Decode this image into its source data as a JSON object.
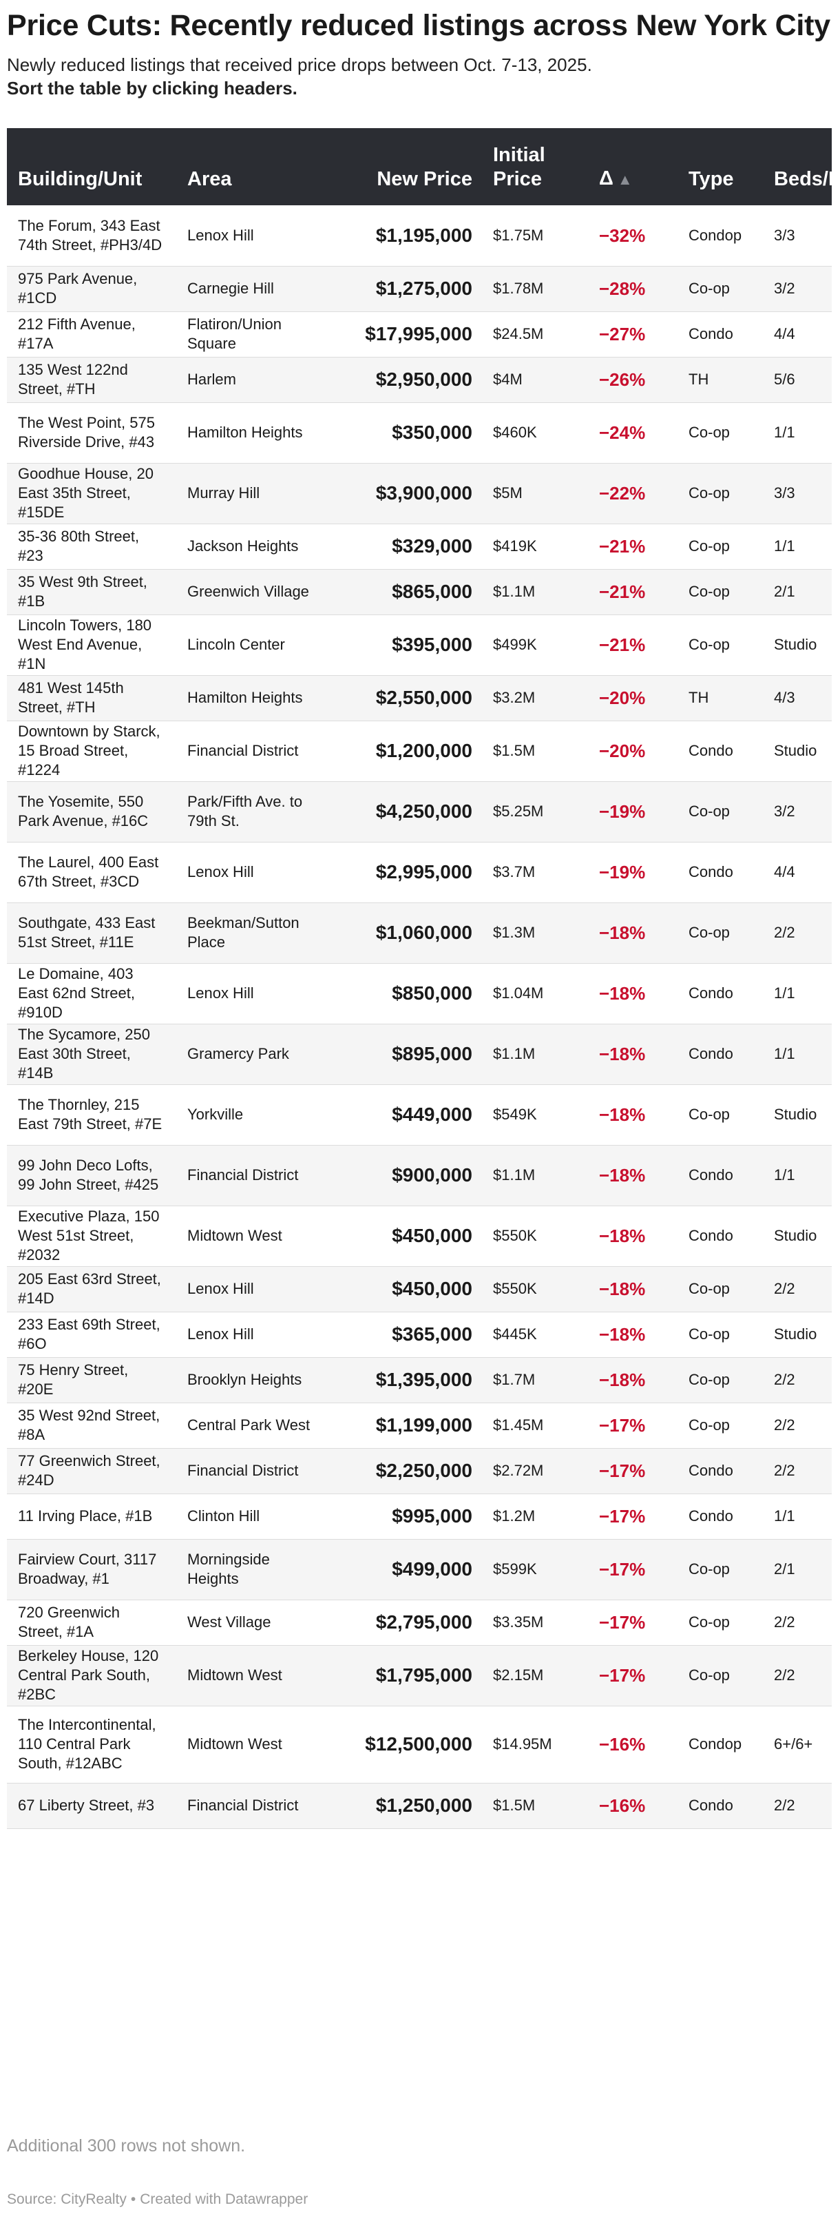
{
  "title": "Price Cuts: Recently reduced listings across New York City",
  "subtitle": "Newly reduced listings that received price drops between Oct. 7-13, 2025.",
  "instruction": "Sort the table by clicking headers.",
  "colors": {
    "header_bg": "#2b2d33",
    "delta_red": "#c8102e",
    "stripe": "#f5f5f5"
  },
  "table": {
    "headers": {
      "building": "Building/Unit",
      "area": "Area",
      "new_price": "New Price",
      "initial_price": "Initial Price",
      "delta": "Δ",
      "delta_sort_icon": "▲",
      "type": "Type",
      "beds_baths": "Beds/Baths"
    },
    "rows": [
      {
        "building": "The Forum, 343 East 74th Street, #PH3/4D",
        "area": "Lenox Hill",
        "new_price": "$1,195,000",
        "initial_price": "$1.75M",
        "delta": "−32%",
        "type": "Condop",
        "beds_baths": "3/3"
      },
      {
        "building": "975 Park Avenue, #1CD",
        "area": "Carnegie Hill",
        "new_price": "$1,275,000",
        "initial_price": "$1.78M",
        "delta": "−28%",
        "type": "Co-op",
        "beds_baths": "3/2"
      },
      {
        "building": "212 Fifth Avenue, #17A",
        "area": "Flatiron/Union Square",
        "new_price": "$17,995,000",
        "initial_price": "$24.5M",
        "delta": "−27%",
        "type": "Condo",
        "beds_baths": "4/4"
      },
      {
        "building": "135 West 122nd Street, #TH",
        "area": "Harlem",
        "new_price": "$2,950,000",
        "initial_price": "$4M",
        "delta": "−26%",
        "type": "TH",
        "beds_baths": "5/6"
      },
      {
        "building": "The West Point, 575 Riverside Drive, #43",
        "area": "Hamilton Heights",
        "new_price": "$350,000",
        "initial_price": "$460K",
        "delta": "−24%",
        "type": "Co-op",
        "beds_baths": "1/1"
      },
      {
        "building": "Goodhue House, 20 East 35th Street, #15DE",
        "area": "Murray Hill",
        "new_price": "$3,900,000",
        "initial_price": "$5M",
        "delta": "−22%",
        "type": "Co-op",
        "beds_baths": "3/3"
      },
      {
        "building": "35-36 80th Street, #23",
        "area": "Jackson Heights",
        "new_price": "$329,000",
        "initial_price": "$419K",
        "delta": "−21%",
        "type": "Co-op",
        "beds_baths": "1/1"
      },
      {
        "building": "35 West 9th Street, #1B",
        "area": "Greenwich Village",
        "new_price": "$865,000",
        "initial_price": "$1.1M",
        "delta": "−21%",
        "type": "Co-op",
        "beds_baths": "2/1"
      },
      {
        "building": "Lincoln Towers, 180 West End Avenue, #1N",
        "area": "Lincoln Center",
        "new_price": "$395,000",
        "initial_price": "$499K",
        "delta": "−21%",
        "type": "Co-op",
        "beds_baths": "Studio"
      },
      {
        "building": "481 West 145th Street, #TH",
        "area": "Hamilton Heights",
        "new_price": "$2,550,000",
        "initial_price": "$3.2M",
        "delta": "−20%",
        "type": "TH",
        "beds_baths": "4/3"
      },
      {
        "building": "Downtown by Starck, 15 Broad Street, #1224",
        "area": "Financial District",
        "new_price": "$1,200,000",
        "initial_price": "$1.5M",
        "delta": "−20%",
        "type": "Condo",
        "beds_baths": "Studio"
      },
      {
        "building": "The Yosemite, 550 Park Avenue, #16C",
        "area": "Park/Fifth Ave. to 79th St.",
        "new_price": "$4,250,000",
        "initial_price": "$5.25M",
        "delta": "−19%",
        "type": "Co-op",
        "beds_baths": "3/2"
      },
      {
        "building": "The Laurel, 400 East 67th Street, #3CD",
        "area": "Lenox Hill",
        "new_price": "$2,995,000",
        "initial_price": "$3.7M",
        "delta": "−19%",
        "type": "Condo",
        "beds_baths": "4/4"
      },
      {
        "building": "Southgate, 433 East 51st Street, #11E",
        "area": "Beekman/Sutton Place",
        "new_price": "$1,060,000",
        "initial_price": "$1.3M",
        "delta": "−18%",
        "type": "Co-op",
        "beds_baths": "2/2"
      },
      {
        "building": "Le Domaine, 403 East 62nd Street, #910D",
        "area": "Lenox Hill",
        "new_price": "$850,000",
        "initial_price": "$1.04M",
        "delta": "−18%",
        "type": "Condo",
        "beds_baths": "1/1"
      },
      {
        "building": "The Sycamore, 250 East 30th Street, #14B",
        "area": "Gramercy Park",
        "new_price": "$895,000",
        "initial_price": "$1.1M",
        "delta": "−18%",
        "type": "Condo",
        "beds_baths": "1/1"
      },
      {
        "building": "The Thornley, 215 East 79th Street, #7E",
        "area": "Yorkville",
        "new_price": "$449,000",
        "initial_price": "$549K",
        "delta": "−18%",
        "type": "Co-op",
        "beds_baths": "Studio"
      },
      {
        "building": "99 John Deco Lofts, 99 John Street, #425",
        "area": "Financial District",
        "new_price": "$900,000",
        "initial_price": "$1.1M",
        "delta": "−18%",
        "type": "Condo",
        "beds_baths": "1/1"
      },
      {
        "building": "Executive Plaza, 150 West 51st Street, #2032",
        "area": "Midtown West",
        "new_price": "$450,000",
        "initial_price": "$550K",
        "delta": "−18%",
        "type": "Condo",
        "beds_baths": "Studio"
      },
      {
        "building": "205 East 63rd Street, #14D",
        "area": "Lenox Hill",
        "new_price": "$450,000",
        "initial_price": "$550K",
        "delta": "−18%",
        "type": "Co-op",
        "beds_baths": "2/2"
      },
      {
        "building": "233 East 69th Street, #6O",
        "area": "Lenox Hill",
        "new_price": "$365,000",
        "initial_price": "$445K",
        "delta": "−18%",
        "type": "Co-op",
        "beds_baths": "Studio"
      },
      {
        "building": "75 Henry Street, #20E",
        "area": "Brooklyn Heights",
        "new_price": "$1,395,000",
        "initial_price": "$1.7M",
        "delta": "−18%",
        "type": "Co-op",
        "beds_baths": "2/2"
      },
      {
        "building": "35 West 92nd Street, #8A",
        "area": "Central Park West",
        "new_price": "$1,199,000",
        "initial_price": "$1.45M",
        "delta": "−17%",
        "type": "Co-op",
        "beds_baths": "2/2"
      },
      {
        "building": "77 Greenwich Street, #24D",
        "area": "Financial District",
        "new_price": "$2,250,000",
        "initial_price": "$2.72M",
        "delta": "−17%",
        "type": "Condo",
        "beds_baths": "2/2"
      },
      {
        "building": "11 Irving Place, #1B",
        "area": "Clinton Hill",
        "new_price": "$995,000",
        "initial_price": "$1.2M",
        "delta": "−17%",
        "type": "Condo",
        "beds_baths": "1/1"
      },
      {
        "building": "Fairview Court, 3117 Broadway, #1",
        "area": "Morningside Heights",
        "new_price": "$499,000",
        "initial_price": "$599K",
        "delta": "−17%",
        "type": "Co-op",
        "beds_baths": "2/1"
      },
      {
        "building": "720 Greenwich Street, #1A",
        "area": "West Village",
        "new_price": "$2,795,000",
        "initial_price": "$3.35M",
        "delta": "−17%",
        "type": "Co-op",
        "beds_baths": "2/2"
      },
      {
        "building": "Berkeley House, 120 Central Park South, #2BC",
        "area": "Midtown West",
        "new_price": "$1,795,000",
        "initial_price": "$2.15M",
        "delta": "−17%",
        "type": "Co-op",
        "beds_baths": "2/2"
      },
      {
        "building": "The Intercontinental, 110 Central Park South, #12ABC",
        "area": "Midtown West",
        "new_price": "$12,500,000",
        "initial_price": "$14.95M",
        "delta": "−16%",
        "type": "Condop",
        "beds_baths": "6+/6+"
      },
      {
        "building": "67 Liberty Street, #3",
        "area": "Financial District",
        "new_price": "$1,250,000",
        "initial_price": "$1.5M",
        "delta": "−16%",
        "type": "Condo",
        "beds_baths": "2/2"
      }
    ]
  },
  "note": "Additional 300 rows not shown.",
  "footer": {
    "source": "Source: CityRealty",
    "separator": "•",
    "credit": "Created with Datawrapper"
  }
}
